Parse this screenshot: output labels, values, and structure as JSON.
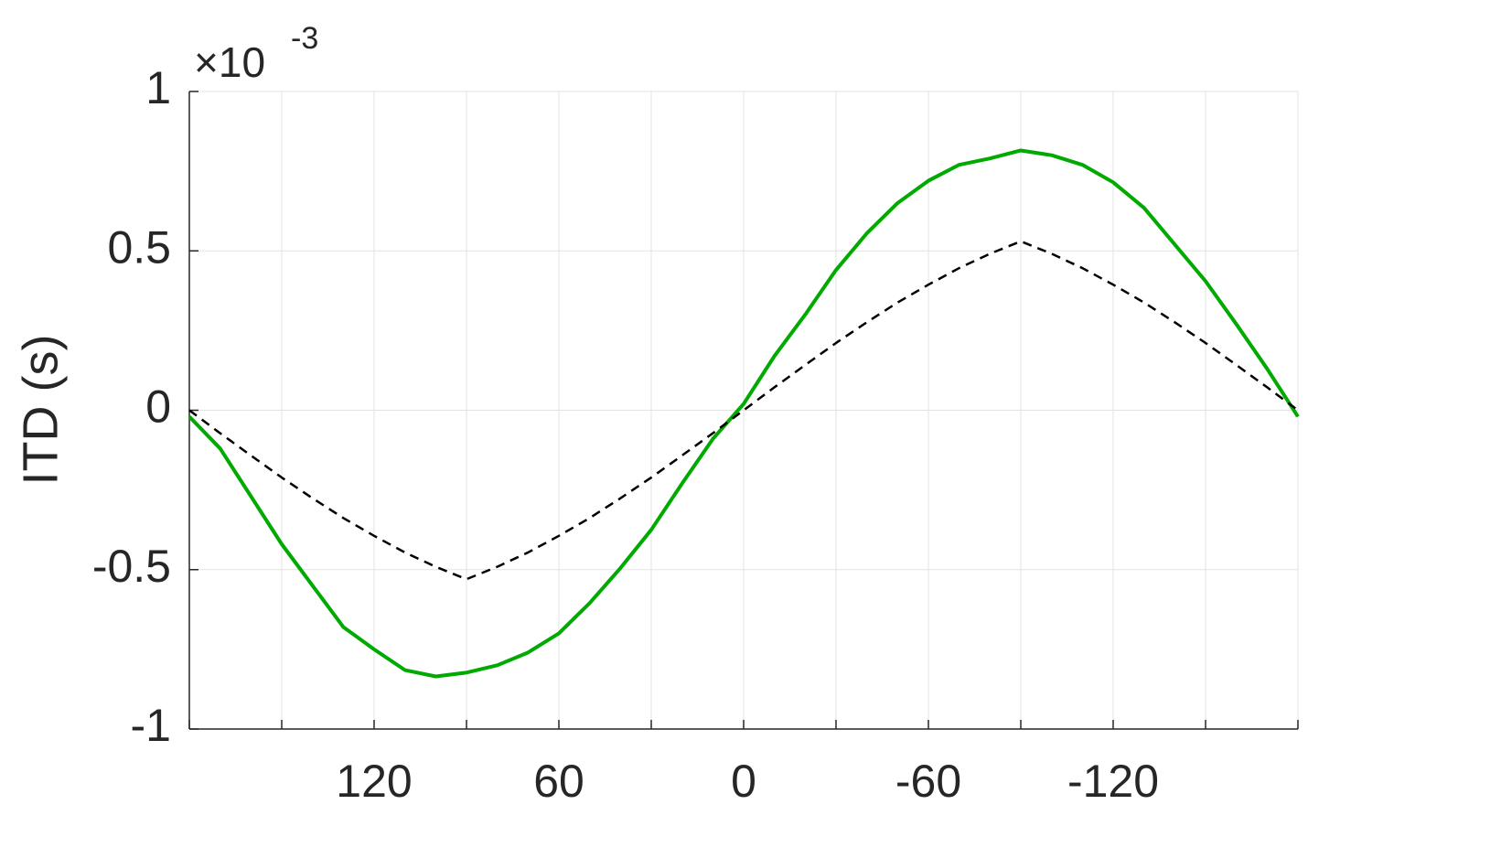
{
  "chart_data": {
    "type": "line",
    "ylabel": "ITD (s)",
    "y_multiplier": {
      "base": "×10",
      "exponent": "-3"
    },
    "x": [
      180,
      170,
      160,
      150,
      140,
      130,
      120,
      110,
      100,
      90,
      80,
      70,
      60,
      50,
      40,
      30,
      20,
      10,
      0,
      -10,
      -20,
      -30,
      -40,
      -50,
      -60,
      -70,
      -80,
      -90,
      -100,
      -110,
      -120,
      -130,
      -140,
      -150,
      -160,
      -170,
      -180
    ],
    "series": [
      {
        "color": "#00aa00",
        "style": "solid",
        "width": 4,
        "values": [
          -2e-05,
          -0.00012,
          -0.00027,
          -0.00042,
          -0.00055,
          -0.00068,
          -0.00075,
          -0.000815,
          -0.000835,
          -0.000823,
          -0.0008,
          -0.00076,
          -0.0007,
          -0.000605,
          -0.000495,
          -0.000375,
          -0.00023,
          -9e-05,
          2e-05,
          0.00017,
          0.0003,
          0.00044,
          0.000555,
          0.00065,
          0.00072,
          0.00077,
          0.00079,
          0.000815,
          0.0008,
          0.00077,
          0.000715,
          0.000635,
          0.00052,
          0.000405,
          0.00027,
          0.00013,
          -2e-05
        ]
      },
      {
        "color": "#000000",
        "style": "dashed",
        "width": 2.5,
        "values": [
          0,
          -7.2e-05,
          -0.000142,
          -0.000211,
          -0.000276,
          -0.000338,
          -0.000394,
          -0.000446,
          -0.000491,
          -0.00053,
          -0.000491,
          -0.000446,
          -0.000394,
          -0.000338,
          -0.000276,
          -0.000211,
          -0.000142,
          -7.2e-05,
          0,
          7.2e-05,
          0.000142,
          0.000211,
          0.000276,
          0.000338,
          0.000394,
          0.000446,
          0.000491,
          0.00053,
          0.000491,
          0.000446,
          0.000394,
          0.000338,
          0.000276,
          0.000211,
          0.000142,
          7.2e-05,
          0
        ]
      }
    ],
    "xlim": [
      180,
      -180
    ],
    "xticks": [
      120,
      60,
      0,
      -60,
      -120
    ],
    "xminorticks": [
      180,
      150,
      90,
      30,
      -30,
      -90,
      -150,
      -180
    ],
    "ylim": [
      -0.001,
      0.001
    ],
    "yticks": [
      {
        "value": 0.001,
        "label": "1"
      },
      {
        "value": 0.0005,
        "label": "0.5"
      },
      {
        "value": 0,
        "label": "0"
      },
      {
        "value": -0.0005,
        "label": "-0.5"
      },
      {
        "value": -0.001,
        "label": "-1"
      }
    ],
    "grid": true
  }
}
